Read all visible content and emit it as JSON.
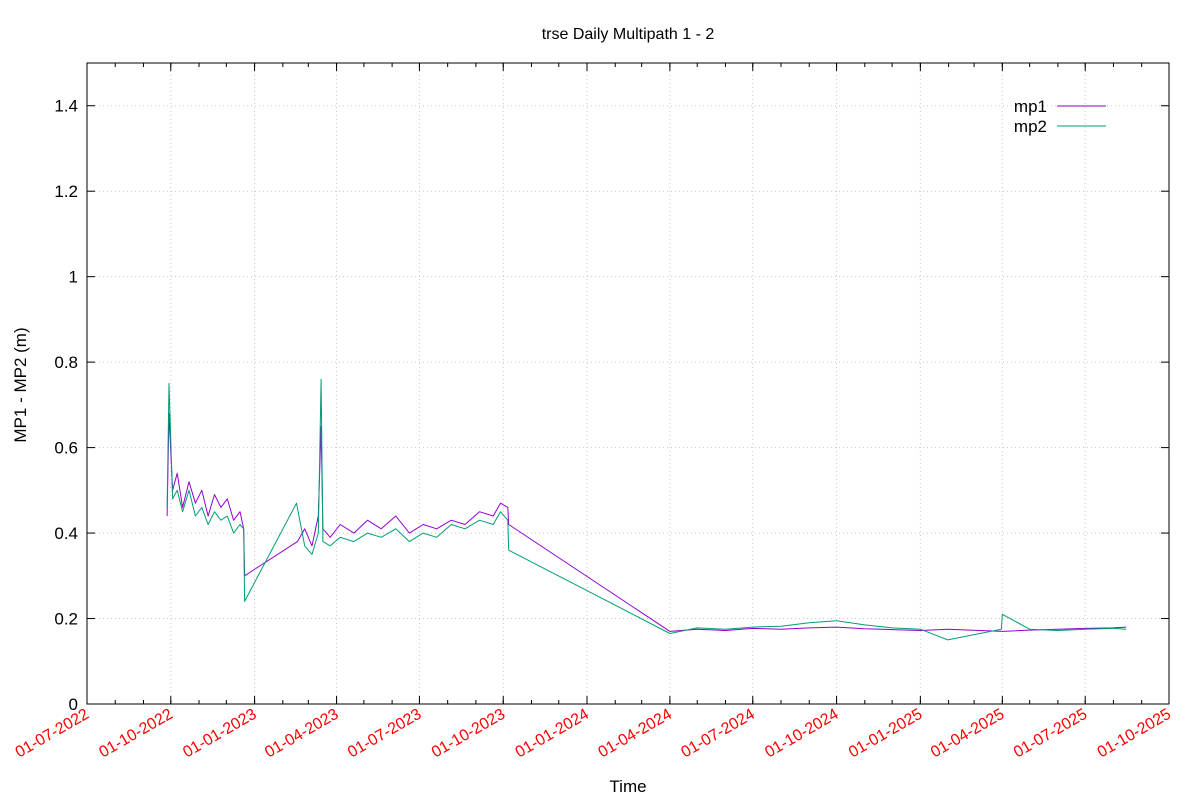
{
  "chart_data": {
    "type": "line",
    "title": "trse Daily Multipath 1 - 2",
    "xlabel": "Time",
    "ylabel": "MP1 - MP2 (m)",
    "ylim": [
      0,
      1.5
    ],
    "yticks": [
      0,
      0.2,
      0.4,
      0.6,
      0.8,
      1,
      1.2,
      1.4
    ],
    "ytick_labels": [
      "0",
      "0.2",
      "0.4",
      "0.6",
      "0.8",
      "1",
      "1.2",
      "1.4"
    ],
    "xlim": [
      "2022-07-01",
      "2025-10-01"
    ],
    "xticks": [
      "2022-07-01",
      "2022-10-01",
      "2023-01-01",
      "2023-04-01",
      "2023-07-01",
      "2023-10-01",
      "2024-01-01",
      "2024-04-01",
      "2024-07-01",
      "2024-10-01",
      "2025-01-01",
      "2025-04-01",
      "2025-07-01",
      "2025-10-01"
    ],
    "xtick_labels": [
      "01-07-2022",
      "01-10-2022",
      "01-01-2023",
      "01-04-2023",
      "01-07-2023",
      "01-10-2023",
      "01-01-2024",
      "01-04-2024",
      "01-07-2024",
      "01-10-2024",
      "01-01-2025",
      "01-04-2025",
      "01-07-2025",
      "01-10-2025"
    ],
    "xtick_color": "#ff0000",
    "grid": true,
    "legend_position": "top-right",
    "series": [
      {
        "name": "mp1",
        "color": "#9400d3",
        "points": [
          [
            "2022-09-27",
            0.44
          ],
          [
            "2022-09-29",
            0.68
          ],
          [
            "2022-10-03",
            0.5
          ],
          [
            "2022-10-08",
            0.54
          ],
          [
            "2022-10-14",
            0.46
          ],
          [
            "2022-10-21",
            0.52
          ],
          [
            "2022-10-28",
            0.47
          ],
          [
            "2022-11-04",
            0.5
          ],
          [
            "2022-11-11",
            0.44
          ],
          [
            "2022-11-18",
            0.49
          ],
          [
            "2022-11-25",
            0.46
          ],
          [
            "2022-12-02",
            0.48
          ],
          [
            "2022-12-09",
            0.43
          ],
          [
            "2022-12-16",
            0.45
          ],
          [
            "2022-12-20",
            0.41
          ],
          [
            "2022-12-21",
            0.3
          ],
          [
            "2023-02-17",
            0.38
          ],
          [
            "2023-02-25",
            0.41
          ],
          [
            "2023-03-05",
            0.37
          ],
          [
            "2023-03-12",
            0.44
          ],
          [
            "2023-03-15",
            0.65
          ],
          [
            "2023-03-17",
            0.41
          ],
          [
            "2023-03-25",
            0.39
          ],
          [
            "2023-04-05",
            0.42
          ],
          [
            "2023-04-20",
            0.4
          ],
          [
            "2023-05-05",
            0.43
          ],
          [
            "2023-05-20",
            0.41
          ],
          [
            "2023-06-05",
            0.44
          ],
          [
            "2023-06-20",
            0.4
          ],
          [
            "2023-07-05",
            0.42
          ],
          [
            "2023-07-20",
            0.41
          ],
          [
            "2023-08-05",
            0.43
          ],
          [
            "2023-08-20",
            0.42
          ],
          [
            "2023-09-05",
            0.45
          ],
          [
            "2023-09-20",
            0.44
          ],
          [
            "2023-09-28",
            0.47
          ],
          [
            "2023-10-06",
            0.46
          ],
          [
            "2023-10-07",
            0.42
          ],
          [
            "2024-04-01",
            0.17
          ],
          [
            "2024-05-01",
            0.175
          ],
          [
            "2024-06-01",
            0.172
          ],
          [
            "2024-07-01",
            0.177
          ],
          [
            "2024-08-01",
            0.175
          ],
          [
            "2024-09-01",
            0.178
          ],
          [
            "2024-10-01",
            0.18
          ],
          [
            "2024-11-01",
            0.176
          ],
          [
            "2024-12-01",
            0.174
          ],
          [
            "2025-01-01",
            0.172
          ],
          [
            "2025-01-31",
            0.175
          ],
          [
            "2025-04-01",
            0.17
          ],
          [
            "2025-05-01",
            0.173
          ],
          [
            "2025-06-01",
            0.175
          ],
          [
            "2025-07-01",
            0.177
          ],
          [
            "2025-08-01",
            0.178
          ],
          [
            "2025-08-15",
            0.18
          ]
        ]
      },
      {
        "name": "mp2",
        "color": "#009e73",
        "points": [
          [
            "2022-09-27",
            0.46
          ],
          [
            "2022-09-29",
            0.75
          ],
          [
            "2022-10-03",
            0.48
          ],
          [
            "2022-10-08",
            0.5
          ],
          [
            "2022-10-14",
            0.45
          ],
          [
            "2022-10-21",
            0.5
          ],
          [
            "2022-10-28",
            0.44
          ],
          [
            "2022-11-04",
            0.46
          ],
          [
            "2022-11-11",
            0.42
          ],
          [
            "2022-11-18",
            0.45
          ],
          [
            "2022-11-25",
            0.43
          ],
          [
            "2022-12-02",
            0.44
          ],
          [
            "2022-12-09",
            0.4
          ],
          [
            "2022-12-16",
            0.42
          ],
          [
            "2022-12-20",
            0.41
          ],
          [
            "2022-12-21",
            0.24
          ],
          [
            "2023-02-16",
            0.47
          ],
          [
            "2023-02-25",
            0.37
          ],
          [
            "2023-03-05",
            0.35
          ],
          [
            "2023-03-12",
            0.4
          ],
          [
            "2023-03-15",
            0.76
          ],
          [
            "2023-03-17",
            0.38
          ],
          [
            "2023-03-25",
            0.37
          ],
          [
            "2023-04-05",
            0.39
          ],
          [
            "2023-04-20",
            0.38
          ],
          [
            "2023-05-05",
            0.4
          ],
          [
            "2023-05-20",
            0.39
          ],
          [
            "2023-06-05",
            0.41
          ],
          [
            "2023-06-20",
            0.38
          ],
          [
            "2023-07-05",
            0.4
          ],
          [
            "2023-07-20",
            0.39
          ],
          [
            "2023-08-05",
            0.42
          ],
          [
            "2023-08-20",
            0.41
          ],
          [
            "2023-09-05",
            0.43
          ],
          [
            "2023-09-20",
            0.42
          ],
          [
            "2023-09-28",
            0.45
          ],
          [
            "2023-10-06",
            0.43
          ],
          [
            "2023-10-07",
            0.36
          ],
          [
            "2024-04-01",
            0.165
          ],
          [
            "2024-05-01",
            0.178
          ],
          [
            "2024-06-01",
            0.175
          ],
          [
            "2024-07-01",
            0.18
          ],
          [
            "2024-08-01",
            0.182
          ],
          [
            "2024-09-01",
            0.19
          ],
          [
            "2024-10-01",
            0.195
          ],
          [
            "2024-11-01",
            0.185
          ],
          [
            "2024-12-01",
            0.178
          ],
          [
            "2025-01-01",
            0.175
          ],
          [
            "2025-01-31",
            0.15
          ],
          [
            "2025-03-31",
            0.175
          ],
          [
            "2025-04-01",
            0.21
          ],
          [
            "2025-05-01",
            0.175
          ],
          [
            "2025-06-01",
            0.172
          ],
          [
            "2025-07-01",
            0.175
          ],
          [
            "2025-08-01",
            0.177
          ],
          [
            "2025-08-15",
            0.175
          ]
        ]
      }
    ]
  }
}
